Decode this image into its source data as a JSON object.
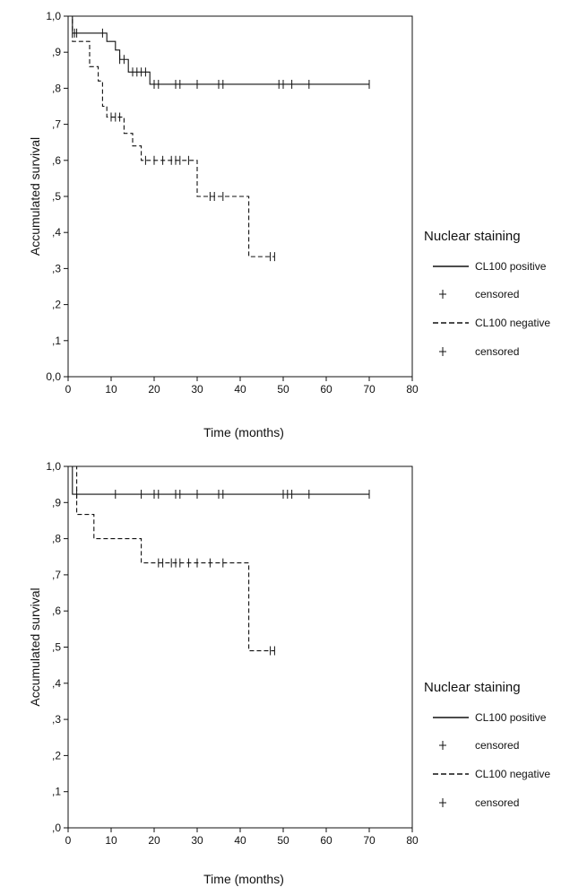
{
  "chart_data": [
    {
      "type": "line",
      "subtype": "kaplan-meier",
      "title": "",
      "xlabel": "Time (months)",
      "ylabel": "Accumulated survival",
      "xlim": [
        0,
        80
      ],
      "ylim": [
        0,
        1
      ],
      "x_ticks": [
        "0",
        "10",
        "20",
        "30",
        "40",
        "50",
        "60",
        "70",
        "80"
      ],
      "y_ticks": [
        "0,0",
        ",1",
        ",2",
        ",3",
        ",4",
        ",5",
        ",6",
        ",7",
        ",8",
        ",9",
        "1,0"
      ],
      "grid": false,
      "legend_position": "right",
      "legend_title": "Nuclear staining",
      "legend_entries": [
        "CL100 positive",
        "censored",
        "CL100 negative",
        "censored"
      ],
      "series": [
        {
          "name": "CL100 positive",
          "style": "solid",
          "steps": [
            [
              0,
              1.0
            ],
            [
              1,
              0.953
            ],
            [
              9,
              0.93
            ],
            [
              11,
              0.906
            ],
            [
              12,
              0.88
            ],
            [
              14,
              0.845
            ],
            [
              19,
              0.811
            ],
            [
              70,
              0.811
            ]
          ],
          "censored": [
            [
              1.5,
              0.953
            ],
            [
              2,
              0.953
            ],
            [
              8,
              0.953
            ],
            [
              12,
              0.88
            ],
            [
              13,
              0.88
            ],
            [
              15,
              0.845
            ],
            [
              16,
              0.845
            ],
            [
              17,
              0.845
            ],
            [
              18,
              0.845
            ],
            [
              20,
              0.811
            ],
            [
              21,
              0.811
            ],
            [
              25,
              0.811
            ],
            [
              26,
              0.811
            ],
            [
              30,
              0.811
            ],
            [
              35,
              0.811
            ],
            [
              36,
              0.811
            ],
            [
              49,
              0.811
            ],
            [
              50,
              0.811
            ],
            [
              52,
              0.811
            ],
            [
              56,
              0.811
            ],
            [
              70,
              0.811
            ]
          ]
        },
        {
          "name": "CL100 negative",
          "style": "dashed",
          "steps": [
            [
              0,
              1.0
            ],
            [
              1,
              0.93
            ],
            [
              5,
              0.86
            ],
            [
              7,
              0.82
            ],
            [
              8,
              0.75
            ],
            [
              9,
              0.72
            ],
            [
              13,
              0.675
            ],
            [
              15,
              0.64
            ],
            [
              17,
              0.6
            ],
            [
              30,
              0.5
            ],
            [
              42,
              0.333
            ],
            [
              48,
              0.333
            ]
          ],
          "censored": [
            [
              10,
              0.72
            ],
            [
              11,
              0.72
            ],
            [
              12,
              0.72
            ],
            [
              18,
              0.6
            ],
            [
              20,
              0.6
            ],
            [
              22,
              0.6
            ],
            [
              24,
              0.6
            ],
            [
              25,
              0.6
            ],
            [
              26,
              0.6
            ],
            [
              28,
              0.6
            ],
            [
              33,
              0.5
            ],
            [
              34,
              0.5
            ],
            [
              36,
              0.5
            ],
            [
              47,
              0.333
            ],
            [
              48,
              0.333
            ]
          ]
        }
      ]
    },
    {
      "type": "line",
      "subtype": "kaplan-meier",
      "title": "",
      "xlabel": "Time (months)",
      "ylabel": "Accumulated survival",
      "xlim": [
        0,
        80
      ],
      "ylim": [
        0,
        1
      ],
      "x_ticks": [
        "0",
        "10",
        "20",
        "30",
        "40",
        "50",
        "60",
        "70",
        "80"
      ],
      "y_ticks": [
        ",0",
        ",1",
        ",2",
        ",3",
        ",4",
        ",5",
        ",6",
        ",7",
        ",8",
        ",9",
        "1,0"
      ],
      "grid": false,
      "legend_position": "right",
      "legend_title": "Nuclear staining",
      "legend_entries": [
        "CL100 positive",
        "censored",
        "CL100 negative",
        "censored"
      ],
      "series": [
        {
          "name": "CL100 positive",
          "style": "solid",
          "steps": [
            [
              0,
              1.0
            ],
            [
              1,
              0.923
            ],
            [
              70,
              0.923
            ]
          ],
          "censored": [
            [
              2,
              0.923
            ],
            [
              11,
              0.923
            ],
            [
              17,
              0.923
            ],
            [
              20,
              0.923
            ],
            [
              21,
              0.923
            ],
            [
              25,
              0.923
            ],
            [
              26,
              0.923
            ],
            [
              30,
              0.923
            ],
            [
              35,
              0.923
            ],
            [
              36,
              0.923
            ],
            [
              50,
              0.923
            ],
            [
              51,
              0.923
            ],
            [
              52,
              0.923
            ],
            [
              56,
              0.923
            ],
            [
              70,
              0.923
            ]
          ]
        },
        {
          "name": "CL100 negative",
          "style": "dashed",
          "steps": [
            [
              0,
              1.0
            ],
            [
              2,
              0.867
            ],
            [
              6,
              0.8
            ],
            [
              17,
              0.733
            ],
            [
              42,
              0.49
            ],
            [
              48,
              0.49
            ]
          ],
          "censored": [
            [
              21,
              0.733
            ],
            [
              22,
              0.733
            ],
            [
              24,
              0.733
            ],
            [
              25,
              0.733
            ],
            [
              26,
              0.733
            ],
            [
              28,
              0.733
            ],
            [
              30,
              0.733
            ],
            [
              33,
              0.733
            ],
            [
              36,
              0.733
            ],
            [
              47,
              0.49
            ],
            [
              48,
              0.49
            ]
          ]
        }
      ]
    }
  ]
}
